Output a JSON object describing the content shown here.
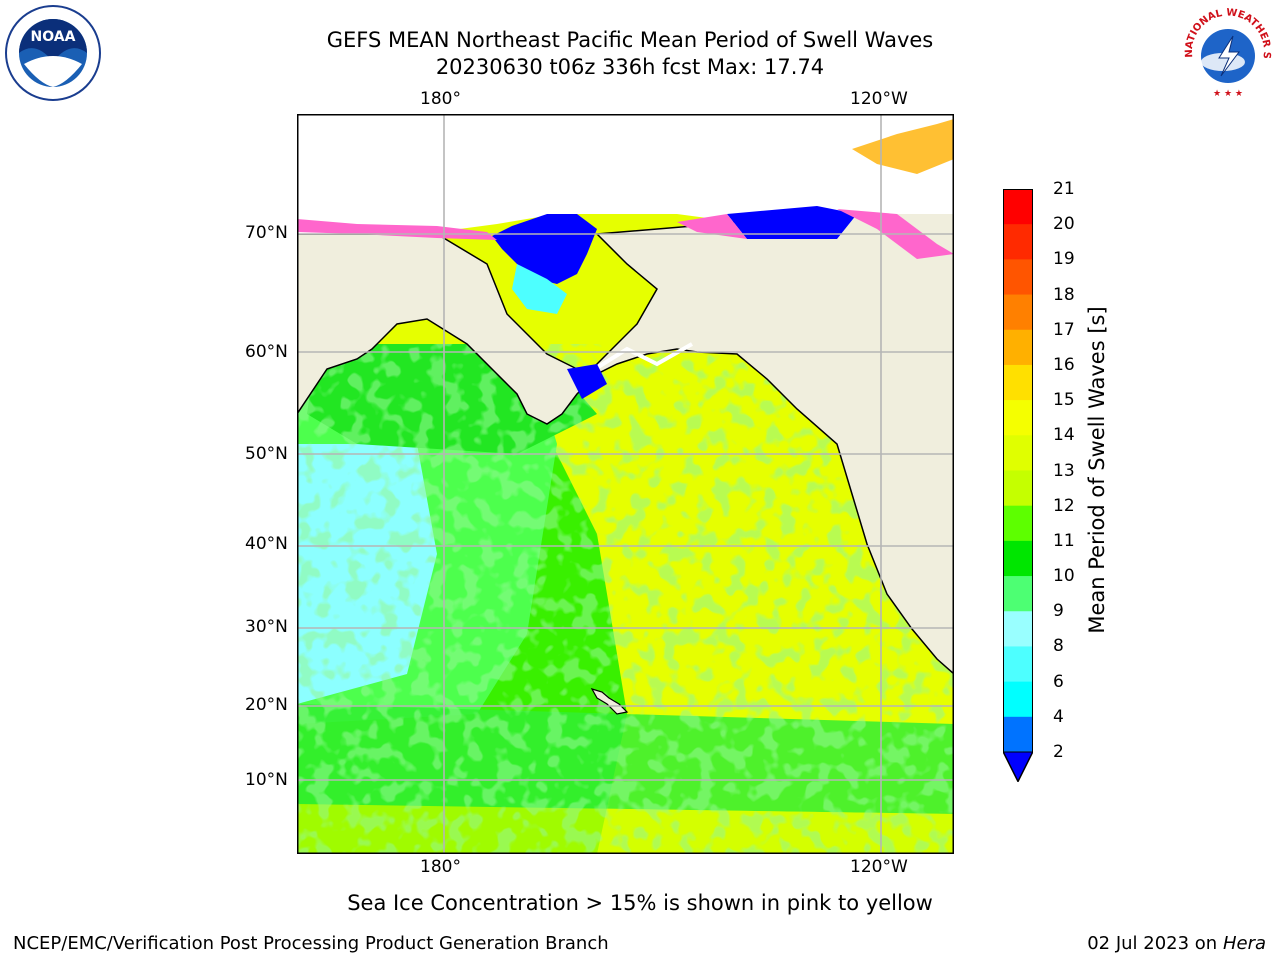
{
  "header": {
    "title_line1": "GEFS MEAN Northeast Pacific Mean Period of Swell Waves",
    "title_line2": "20230630 t06z 336h fcst   Max: 17.74"
  },
  "map": {
    "top_lon_labels": [
      "180°",
      "120°W"
    ],
    "bottom_lon_labels": [
      "180°",
      "120°W"
    ],
    "lat_labels": [
      "70°N",
      "60°N",
      "50°N",
      "40°N",
      "30°N",
      "20°N",
      "10°N"
    ],
    "land_color": "#f0eedd",
    "ocean_dominant_colors": [
      "#e6ff00",
      "#00e600",
      "#5cff5c",
      "#8cffff",
      "#0000ff"
    ]
  },
  "colorbar": {
    "label": "Mean Period of Swell Waves [s]",
    "ticks": [
      "21",
      "20",
      "19",
      "18",
      "17",
      "16",
      "15",
      "14",
      "13",
      "12",
      "11",
      "10",
      "9",
      "8",
      "6",
      "4",
      "2"
    ],
    "colors_top_to_bottom": [
      "#ff0000",
      "#ff2a00",
      "#ff5500",
      "#ff8000",
      "#ffb000",
      "#ffe000",
      "#f5ff00",
      "#e0ff00",
      "#c5ff00",
      "#5dff00",
      "#00e600",
      "#4dff73",
      "#99ffff",
      "#4dffff",
      "#00ffff",
      "#0073ff"
    ],
    "extend_color": "#0000ff"
  },
  "note": "Sea Ice Concentration > 15% is shown in pink to yellow",
  "footer": {
    "left": "NCEP/EMC/Verification Post Processing Product Generation Branch",
    "right_date": "02 Jul 2023 on ",
    "right_host": "Hera"
  },
  "logos": {
    "noaa_text": "NOAA",
    "nws_text": "NATIONAL WEATHER SERVICE"
  }
}
